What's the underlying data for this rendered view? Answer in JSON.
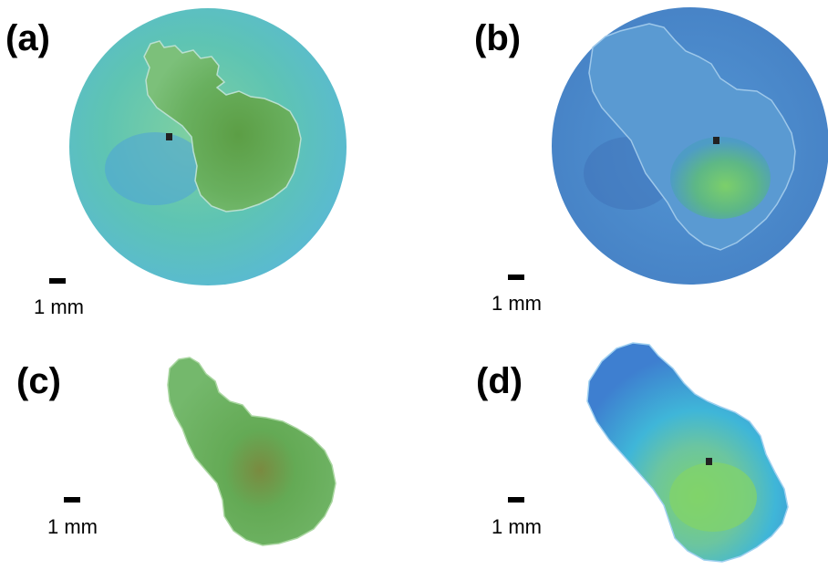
{
  "panels": [
    {
      "label": "(a)",
      "scale_text": "1 mm",
      "marker": "1"
    },
    {
      "label": "(b)",
      "scale_text": "1 mm",
      "marker": "1"
    },
    {
      "label": "(c)",
      "scale_text": "1 mm"
    },
    {
      "label": "(d)",
      "scale_text": "1 mm",
      "marker": "1"
    }
  ],
  "colors": {
    "background": "#ffffff",
    "text": "#000000",
    "panel_a_disk": "#62c5a8",
    "panel_a_region": "#6bb36b",
    "panel_b_disk": "#4f8fd0",
    "panel_b_region": "#5fb37a",
    "panel_c_region": "#6db56a",
    "panel_d_region": "#4a8fd6",
    "panel_d_core": "#78c86b"
  }
}
